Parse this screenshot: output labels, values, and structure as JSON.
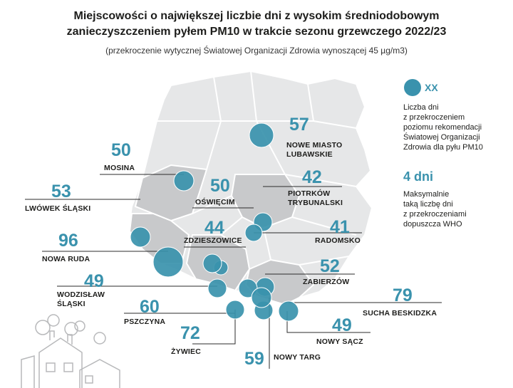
{
  "header": {
    "title_line1": "Miejscowości o największej liczbie dni z wysokim średniodobowym",
    "title_line2": "zanieczyszczeniem pyłem PM10 w trakcie sezonu grzewczego 2022/23",
    "subtitle": "(przekroczenie wytycznej Światowej Organizacji Zdrowia wynoszącej 45 µg/m3)"
  },
  "legend": {
    "marker_placeholder": "XX",
    "marker_desc_lines": [
      "Liczba dni",
      "z przekroczeniem",
      "poziomu rekomendacji",
      "Światowej Organizacji",
      "Zdrowia dla pyłu PM10"
    ],
    "who_value": "4 dni",
    "who_desc_lines": [
      "Maksymalnie",
      "taką liczbę dni",
      "z przekroczeniami",
      "dopuszcza WHO"
    ]
  },
  "colors": {
    "marker": "#3a92ad",
    "map_light": "#e6e7e8",
    "map_dark": "#c8c9cb",
    "border": "#ffffff",
    "leader": "#2b2b2b"
  },
  "places": [
    {
      "name": "NOWE MIASTO\nLUBAWSKIE",
      "days": "57"
    },
    {
      "name": "MOSINA",
      "days": "50"
    },
    {
      "name": "PIOTRKÓW\nTRYBUNALSKI",
      "days": "42"
    },
    {
      "name": "LWÓWEK ŚLĄSKI",
      "days": "53"
    },
    {
      "name": "OŚWIĘCIM",
      "days": "50"
    },
    {
      "name": "RADOMSKO",
      "days": "41"
    },
    {
      "name": "ZDZIESZOWICE",
      "days": "44"
    },
    {
      "name": "NOWA RUDA",
      "days": "96"
    },
    {
      "name": "ZABIERZÓW",
      "days": "52"
    },
    {
      "name": "WODZISŁAW\nŚLĄSKI",
      "days": "49"
    },
    {
      "name": "SUCHA BESKIDZKA",
      "days": "79"
    },
    {
      "name": "PSZCZYNA",
      "days": "60"
    },
    {
      "name": "NOWY SĄCZ",
      "days": "49"
    },
    {
      "name": "ŻYWIEC",
      "days": "72"
    },
    {
      "name": "NOWY TARG",
      "days": "59"
    }
  ]
}
